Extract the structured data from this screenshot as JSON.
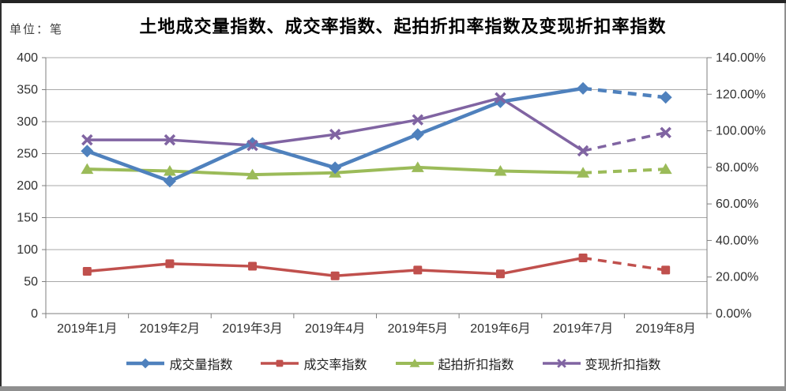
{
  "page": {
    "unit_label": "单位：笔",
    "title": "土地成交量指数、成交率指数、起拍折扣率指数及变现折扣率指数"
  },
  "chart_data": {
    "type": "line",
    "categories": [
      "2019年1月",
      "2019年2月",
      "2019年3月",
      "2019年4月",
      "2019年5月",
      "2019年6月",
      "2019年7月",
      "2019年8月"
    ],
    "series": [
      {
        "name": "成交量指数",
        "axis": "left",
        "color": "#4F81BD",
        "marker": "diamond",
        "line_width": 4.5,
        "values": [
          254,
          207,
          266,
          228,
          280,
          331,
          352,
          338
        ],
        "dashed_from_index": 6
      },
      {
        "name": "成交率指数",
        "axis": "left",
        "color": "#C0504D",
        "marker": "square",
        "line_width": 3.5,
        "values": [
          66,
          78,
          74,
          59,
          68,
          62,
          87,
          68
        ],
        "dashed_from_index": 6
      },
      {
        "name": "起拍折扣指数",
        "axis": "right",
        "color": "#9BBB59",
        "marker": "triangle",
        "line_width": 4,
        "values": [
          79,
          78,
          76,
          77,
          80,
          78,
          77,
          79
        ],
        "dashed_from_index": 6
      },
      {
        "name": "变现折扣指数",
        "axis": "right",
        "color": "#8064A2",
        "marker": "x",
        "line_width": 3.5,
        "values": [
          95,
          95,
          92,
          98,
          106,
          118,
          89,
          99
        ],
        "dashed_from_index": 6
      }
    ],
    "left_axis": {
      "min": 0,
      "max": 400,
      "tick_step": 50,
      "tick_labels": [
        "400",
        "350",
        "300",
        "250",
        "200",
        "150",
        "100",
        "50",
        "0"
      ]
    },
    "right_axis": {
      "min": 0,
      "max": 140,
      "tick_step": 20,
      "tick_labels": [
        "140.00%",
        "120.00%",
        "100.00%",
        "80.00%",
        "60.00%",
        "40.00%",
        "20.00%",
        "0.00%"
      ]
    },
    "grid": true,
    "legend_position": "bottom",
    "palette": {
      "grid": "#A8A8A8",
      "axis": "#7F7F7F",
      "tick_text": "#303030"
    }
  }
}
